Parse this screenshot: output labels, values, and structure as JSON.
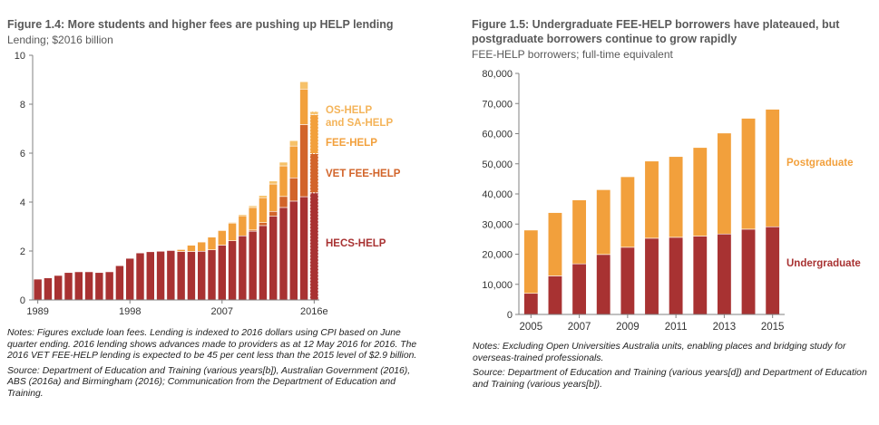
{
  "colors": {
    "hecs": "#a83232",
    "vet": "#d2642a",
    "fee": "#f2a03c",
    "os": "#f6c169",
    "undergrad": "#a83232",
    "postgrad": "#f2a03c",
    "label_dark": "#a83232",
    "label_mid": "#d2642a",
    "label_light": "#f2a03c",
    "label_lightest": "#f4b45a"
  },
  "left": {
    "title": "Figure 1.4: More students and higher fees are pushing up HELP lending",
    "subtitle": "Lending; $2016 billion",
    "notes": "Notes: Figures exclude loan fees. Lending is indexed to 2016 dollars using CPI based on June quarter ending. 2016 lending shows advances made to providers as at 12 May 2016 for 2016. The 2016 VET FEE-HELP lending is expected to be 45 per cent less than the 2015 level of $2.9 billion.",
    "source": "Source: Department of Education and Training (various years[b]), Australian Government (2016), ABS (2016a) and Birmingham (2016); Communication from the Department of Education and Training."
  },
  "right": {
    "title_line1": "Figure 1.5: Undergraduate FEE-HELP borrowers have plateaued, but",
    "title_line2": "postgraduate borrowers continue to grow rapidly",
    "subtitle": "FEE-HELP borrowers; full-time equivalent",
    "notes": "Notes: Excluding Open Universities Australia units, enabling places and bridging study for overseas-trained professionals.",
    "source": "Source: Department of Education and Training (various years[d]) and Department of Education and Training (various years[b])."
  },
  "chart_data": [
    {
      "type": "bar",
      "stacked": true,
      "title": "Figure 1.4: More students and higher fees are pushing up HELP lending",
      "ylabel": "Lending; $2016 billion",
      "ylim": [
        0,
        10
      ],
      "yticks": [
        0,
        2,
        4,
        6,
        8,
        10
      ],
      "categories": [
        "1989",
        "1990",
        "1991",
        "1992",
        "1993",
        "1994",
        "1995",
        "1996",
        "1997",
        "1998",
        "1999",
        "2000",
        "2001",
        "2002",
        "2003",
        "2004",
        "2005",
        "2006",
        "2007",
        "2008",
        "2009",
        "2010",
        "2011",
        "2012",
        "2013",
        "2014",
        "2015",
        "2016e"
      ],
      "xtick_labels": [
        "1989",
        "1998",
        "2007",
        "2016e"
      ],
      "last_bar_dashed": true,
      "series": [
        {
          "name": "HECS-HELP",
          "values": [
            0.85,
            0.9,
            1.0,
            1.12,
            1.15,
            1.15,
            1.12,
            1.15,
            1.4,
            1.7,
            1.92,
            1.97,
            1.99,
            2.02,
            1.98,
            1.98,
            1.99,
            2.05,
            2.24,
            2.42,
            2.62,
            2.81,
            3.04,
            3.42,
            3.78,
            4.04,
            4.22,
            4.38
          ]
        },
        {
          "name": "VET FEE-HELP",
          "values": [
            0,
            0,
            0,
            0,
            0,
            0,
            0,
            0,
            0,
            0,
            0,
            0,
            0,
            0,
            0,
            0,
            0,
            0,
            0,
            0,
            0,
            0.05,
            0.12,
            0.2,
            0.45,
            0.95,
            2.95,
            1.6
          ]
        },
        {
          "name": "FEE-HELP",
          "values": [
            0,
            0,
            0,
            0,
            0,
            0,
            0,
            0,
            0,
            0,
            0,
            0,
            0,
            0,
            0.08,
            0.26,
            0.38,
            0.52,
            0.6,
            0.72,
            0.82,
            0.92,
            1.02,
            1.12,
            1.25,
            1.3,
            1.45,
            1.6
          ]
        },
        {
          "name": "OS-HELP and SA-HELP",
          "values": [
            0,
            0,
            0,
            0,
            0,
            0,
            0,
            0,
            0,
            0,
            0,
            0,
            0,
            0,
            0,
            0.01,
            0.01,
            0.02,
            0.02,
            0.03,
            0.05,
            0.07,
            0.09,
            0.12,
            0.15,
            0.22,
            0.3,
            0.12
          ]
        }
      ],
      "series_labels": [
        "OS-HELP",
        "and SA-HELP",
        "FEE-HELP",
        "VET FEE-HELP",
        "HECS-HELP"
      ]
    },
    {
      "type": "bar",
      "stacked": true,
      "title": "Figure 1.5: Undergraduate FEE-HELP borrowers have plateaued, but postgraduate borrowers continue to grow rapidly",
      "ylabel": "FEE-HELP borrowers; full-time equivalent",
      "ylim": [
        0,
        80000
      ],
      "yticks": [
        0,
        10000,
        20000,
        30000,
        40000,
        50000,
        60000,
        70000,
        80000
      ],
      "ytick_labels": [
        "0",
        "10,000",
        "20,000",
        "30,000",
        "40,000",
        "50,000",
        "60,000",
        "70,000",
        "80,000"
      ],
      "categories": [
        "2005",
        "2006",
        "2007",
        "2008",
        "2009",
        "2010",
        "2011",
        "2012",
        "2013",
        "2014",
        "2015"
      ],
      "xtick_labels": [
        "2005",
        "2007",
        "2009",
        "2011",
        "2013",
        "2015"
      ],
      "series": [
        {
          "name": "Undergraduate",
          "values": [
            7000,
            12800,
            16800,
            19900,
            22300,
            25300,
            25600,
            26000,
            26700,
            28300,
            29100
          ]
        },
        {
          "name": "Postgraduate",
          "values": [
            21000,
            21000,
            21200,
            21500,
            23400,
            25600,
            26800,
            29400,
            33500,
            36800,
            39000
          ]
        }
      ]
    }
  ]
}
